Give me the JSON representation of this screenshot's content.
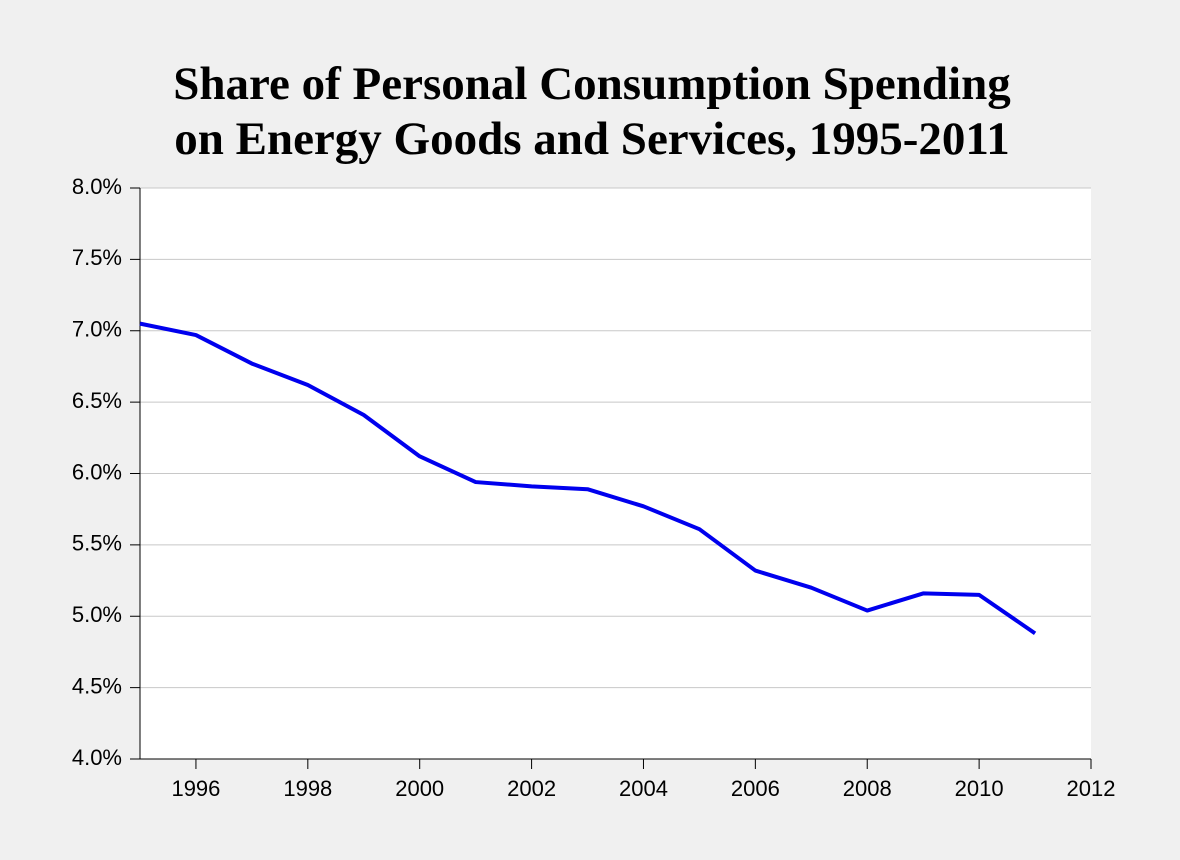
{
  "chart_data": {
    "type": "line",
    "title": [
      "Share of Personal Consumption Spending",
      "on Energy Goods and Services, 1995-2011"
    ],
    "x": [
      1995,
      1996,
      1997,
      1998,
      1999,
      2000,
      2001,
      2002,
      2003,
      2004,
      2005,
      2006,
      2007,
      2008,
      2009,
      2010,
      2011
    ],
    "series": [
      {
        "color": "#0000ee",
        "values": [
          7.05,
          6.97,
          6.77,
          6.62,
          6.41,
          6.12,
          5.94,
          5.91,
          5.89,
          5.77,
          5.61,
          5.32,
          5.2,
          5.04,
          5.16,
          5.15,
          4.88
        ]
      }
    ],
    "xlim": [
      1995,
      2012
    ],
    "xticks": [
      1996,
      1998,
      2000,
      2002,
      2004,
      2006,
      2008,
      2010,
      2012
    ],
    "ylim": [
      4,
      8
    ],
    "yticks": [
      {
        "value": 4,
        "label": "4.0%"
      },
      {
        "value": 4.5,
        "label": "4.5%"
      },
      {
        "value": 5,
        "label": "5.0%"
      },
      {
        "value": 5.5,
        "label": "5.5%"
      },
      {
        "value": 6,
        "label": "6.0%"
      },
      {
        "value": 6.5,
        "label": "6.5%"
      },
      {
        "value": 7,
        "label": "7.0%"
      },
      {
        "value": 7.5,
        "label": "7.5%"
      },
      {
        "value": 8,
        "label": "8.0%"
      }
    ],
    "grid": true
  }
}
